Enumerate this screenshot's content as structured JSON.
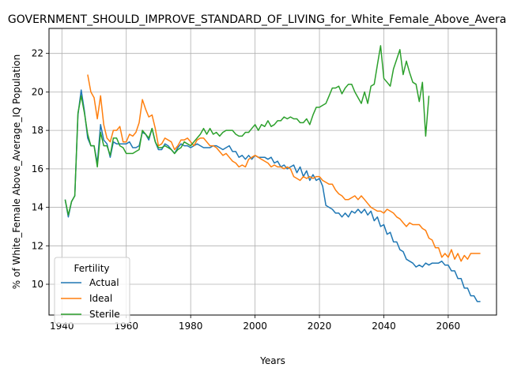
{
  "chart_data": {
    "type": "line",
    "title": "GOVERNMENT_SHOULD_IMPROVE_STANDARD_OF_LIVING_for_White_Female_Above_Average_IQ",
    "xlabel": "Years",
    "ylabel": "% of White_Female Above_Average_IQ Population",
    "xlim": [
      1936,
      2075
    ],
    "ylim": [
      8.4,
      23.3
    ],
    "xticks": [
      1940,
      1960,
      1980,
      2000,
      2020,
      2040,
      2060
    ],
    "yticks": [
      10,
      12,
      14,
      16,
      18,
      20,
      22
    ],
    "grid": true,
    "legend": {
      "title": "Fertility",
      "placement": "lower-left"
    },
    "series": [
      {
        "name": "Actual",
        "color": "#1f77b4",
        "x": [
          1941,
          1942,
          1943,
          1944,
          1945,
          1946,
          1947,
          1948,
          1949,
          1950,
          1951,
          1952,
          1953,
          1954,
          1955,
          1956,
          1957,
          1958,
          1959,
          1960,
          1961,
          1962,
          1963,
          1964,
          1965,
          1966,
          1967,
          1968,
          1969,
          1970,
          1971,
          1972,
          1973,
          1974,
          1975,
          1976,
          1977,
          1978,
          1979,
          1980,
          1981,
          1982,
          1983,
          1984,
          1985,
          1986,
          1987,
          1988,
          1989,
          1990,
          1991,
          1992,
          1993,
          1994,
          1995,
          1996,
          1997,
          1998,
          1999,
          2000,
          2001,
          2002,
          2003,
          2004,
          2005,
          2006,
          2007,
          2008,
          2009,
          2010,
          2011,
          2012,
          2013,
          2014,
          2015,
          2016,
          2017,
          2018,
          2019,
          2020,
          2021,
          2022,
          2023,
          2024,
          2025,
          2026,
          2027,
          2028,
          2029,
          2030,
          2031,
          2032,
          2033,
          2034,
          2035,
          2036,
          2037,
          2038,
          2039,
          2040,
          2041,
          2042,
          2043,
          2044,
          2045,
          2046,
          2047,
          2048,
          2049,
          2050,
          2051,
          2052,
          2053,
          2054,
          2055,
          2056,
          2057,
          2058,
          2059,
          2060,
          2061,
          2062,
          2063,
          2064,
          2065,
          2066,
          2067,
          2068,
          2069,
          2070
        ],
        "y": [
          14.4,
          13.5,
          14.3,
          14.6,
          18.8,
          20.1,
          19.0,
          17.6,
          17.2,
          17.2,
          16.3,
          18.3,
          17.5,
          17.3,
          16.6,
          17.4,
          17.3,
          17.3,
          17.3,
          17.3,
          17.4,
          17.1,
          17.1,
          17.2,
          17.9,
          17.8,
          17.5,
          18.1,
          17.4,
          17.0,
          17.0,
          17.3,
          17.2,
          17.0,
          16.8,
          17.1,
          17.3,
          17.2,
          17.2,
          17.1,
          17.2,
          17.3,
          17.2,
          17.1,
          17.1,
          17.1,
          17.2,
          17.2,
          17.1,
          17.0,
          17.1,
          17.2,
          16.9,
          16.9,
          16.6,
          16.7,
          16.5,
          16.7,
          16.5,
          16.7,
          16.6,
          16.6,
          16.6,
          16.5,
          16.6,
          16.3,
          16.4,
          16.1,
          16.2,
          16.0,
          16.1,
          16.2,
          15.8,
          16.1,
          15.6,
          15.9,
          15.4,
          15.7,
          15.4,
          15.5,
          15.1,
          14.1,
          14.0,
          13.9,
          13.7,
          13.7,
          13.5,
          13.7,
          13.5,
          13.8,
          13.7,
          13.9,
          13.7,
          13.9,
          13.6,
          13.8,
          13.3,
          13.5,
          13.0,
          13.1,
          12.6,
          12.7,
          12.2,
          12.2,
          11.8,
          11.7,
          11.3,
          11.2,
          11.1,
          10.9,
          11.0,
          10.9,
          11.1,
          11.0,
          11.1,
          11.1,
          11.1,
          11.2,
          11.0,
          11.0,
          10.7,
          10.7,
          10.3,
          10.3,
          9.8,
          9.8,
          9.4,
          9.4,
          9.1,
          9.1
        ]
      },
      {
        "name": "Ideal",
        "color": "#ff7f0e",
        "x": [
          1948,
          1949,
          1950,
          1951,
          1952,
          1953,
          1954,
          1955,
          1956,
          1957,
          1958,
          1959,
          1960,
          1961,
          1962,
          1963,
          1964,
          1965,
          1966,
          1967,
          1968,
          1969,
          1970,
          1971,
          1972,
          1973,
          1974,
          1975,
          1976,
          1977,
          1978,
          1979,
          1980,
          1981,
          1982,
          1983,
          1984,
          1985,
          1986,
          1987,
          1988,
          1989,
          1990,
          1991,
          1992,
          1993,
          1994,
          1995,
          1996,
          1997,
          1998,
          1999,
          2000,
          2001,
          2002,
          2003,
          2004,
          2005,
          2006,
          2007,
          2008,
          2009,
          2010,
          2011,
          2012,
          2013,
          2014,
          2015,
          2016,
          2017,
          2018,
          2019,
          2020,
          2021,
          2022,
          2023,
          2024,
          2025,
          2026,
          2027,
          2028,
          2029,
          2030,
          2031,
          2032,
          2033,
          2034,
          2035,
          2036,
          2037,
          2038,
          2039,
          2040,
          2041,
          2042,
          2043,
          2044,
          2045,
          2046,
          2047,
          2048,
          2049,
          2050,
          2051,
          2052,
          2053,
          2054,
          2055,
          2056,
          2057,
          2058,
          2059,
          2060,
          2061,
          2062,
          2063,
          2064,
          2065,
          2066,
          2067,
          2068,
          2069,
          2070
        ],
        "y": [
          20.9,
          20.0,
          19.7,
          18.6,
          19.8,
          18.3,
          17.6,
          17.4,
          18.0,
          18.0,
          18.2,
          17.4,
          17.4,
          17.8,
          17.7,
          17.9,
          18.4,
          19.6,
          19.1,
          18.7,
          18.8,
          18.1,
          17.2,
          17.3,
          17.6,
          17.5,
          17.4,
          17.0,
          17.2,
          17.5,
          17.5,
          17.6,
          17.4,
          17.2,
          17.5,
          17.6,
          17.6,
          17.4,
          17.2,
          17.2,
          17.1,
          16.9,
          16.7,
          16.8,
          16.6,
          16.4,
          16.3,
          16.1,
          16.2,
          16.1,
          16.5,
          16.6,
          16.7,
          16.6,
          16.5,
          16.4,
          16.3,
          16.1,
          16.2,
          16.1,
          16.1,
          16.0,
          16.1,
          16.0,
          15.6,
          15.5,
          15.4,
          15.6,
          15.5,
          15.6,
          15.5,
          15.6,
          15.6,
          15.4,
          15.3,
          15.2,
          15.2,
          14.9,
          14.7,
          14.6,
          14.4,
          14.4,
          14.5,
          14.6,
          14.4,
          14.6,
          14.4,
          14.2,
          14.0,
          13.9,
          13.8,
          13.8,
          13.7,
          13.9,
          13.8,
          13.7,
          13.5,
          13.4,
          13.2,
          13.0,
          13.2,
          13.1,
          13.1,
          13.1,
          12.9,
          12.8,
          12.4,
          12.3,
          11.9,
          11.9,
          11.4,
          11.6,
          11.4,
          11.8,
          11.3,
          11.6,
          11.2,
          11.5,
          11.3,
          11.6,
          11.6,
          11.6,
          11.6
        ]
      },
      {
        "name": "Sterile",
        "color": "#2ca02c",
        "x": [
          1941,
          1942,
          1943,
          1944,
          1945,
          1946,
          1947,
          1948,
          1949,
          1950,
          1951,
          1952,
          1953,
          1954,
          1955,
          1956,
          1957,
          1958,
          1959,
          1960,
          1961,
          1962,
          1963,
          1964,
          1965,
          1966,
          1967,
          1968,
          1969,
          1970,
          1971,
          1972,
          1973,
          1974,
          1975,
          1976,
          1977,
          1978,
          1979,
          1980,
          1981,
          1982,
          1983,
          1984,
          1985,
          1986,
          1987,
          1988,
          1989,
          1990,
          1991,
          1992,
          1993,
          1994,
          1995,
          1996,
          1997,
          1998,
          1999,
          2000,
          2001,
          2002,
          2003,
          2004,
          2005,
          2006,
          2007,
          2008,
          2009,
          2010,
          2011,
          2012,
          2013,
          2014,
          2015,
          2016,
          2017,
          2018,
          2019,
          2020,
          2021,
          2022,
          2023,
          2024,
          2025,
          2026,
          2027,
          2028,
          2029,
          2030,
          2031,
          2032,
          2033,
          2034,
          2035,
          2036,
          2037,
          2038,
          2039,
          2040,
          2041,
          2042,
          2043,
          2044,
          2045,
          2046,
          2047,
          2048,
          2049,
          2050,
          2051,
          2052,
          2053,
          2054
        ],
        "y": [
          14.4,
          13.6,
          14.3,
          14.6,
          18.9,
          19.8,
          18.9,
          17.8,
          17.2,
          17.2,
          16.1,
          17.9,
          17.2,
          17.2,
          16.7,
          17.6,
          17.6,
          17.2,
          17.1,
          16.8,
          16.8,
          16.8,
          16.9,
          17.0,
          18.0,
          17.8,
          17.6,
          18.1,
          17.4,
          17.1,
          17.1,
          17.2,
          17.1,
          17.0,
          16.8,
          17.0,
          17.1,
          17.4,
          17.3,
          17.2,
          17.4,
          17.6,
          17.8,
          18.1,
          17.8,
          18.1,
          17.8,
          17.9,
          17.7,
          17.9,
          18.0,
          18.0,
          18.0,
          17.8,
          17.7,
          17.7,
          17.9,
          17.9,
          18.1,
          18.3,
          18.0,
          18.3,
          18.2,
          18.5,
          18.2,
          18.3,
          18.5,
          18.5,
          18.7,
          18.6,
          18.7,
          18.6,
          18.6,
          18.4,
          18.4,
          18.6,
          18.3,
          18.8,
          19.2,
          19.2,
          19.3,
          19.4,
          19.8,
          20.2,
          20.2,
          20.3,
          19.9,
          20.2,
          20.4,
          20.4,
          20.0,
          19.7,
          19.4,
          20.0,
          19.4,
          20.3,
          20.4,
          21.4,
          22.4,
          20.7,
          20.5,
          20.3,
          21.2,
          21.7,
          22.2,
          20.9,
          21.6,
          21.0,
          20.5,
          20.4,
          19.5,
          20.5,
          17.7,
          19.8
        ]
      }
    ]
  }
}
